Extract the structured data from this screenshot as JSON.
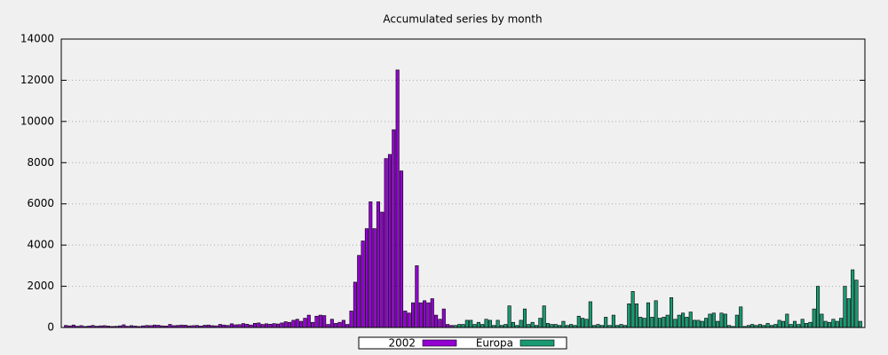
{
  "chart_data": {
    "type": "bar",
    "title": "Accumulated series by month",
    "categories": [
      null,
      null,
      null,
      null,
      null,
      null,
      null,
      null,
      null,
      null,
      null,
      null,
      null,
      null,
      null,
      null,
      null,
      null,
      null,
      null,
      null,
      null,
      null,
      null,
      null,
      null,
      null,
      null,
      null,
      null,
      null,
      null,
      null,
      null,
      null,
      null,
      null,
      null,
      null,
      null,
      null,
      null,
      null,
      null,
      null,
      null,
      null,
      null,
      null,
      null,
      null,
      null,
      null,
      null,
      null,
      null,
      null,
      null,
      null,
      null,
      null,
      null,
      null,
      null,
      null,
      null,
      null,
      null,
      null,
      null,
      null,
      null,
      null,
      null,
      null,
      null,
      null,
      null,
      null,
      null,
      null,
      null,
      null,
      null,
      null,
      null,
      null,
      null,
      null,
      null,
      null,
      null,
      null,
      null,
      null,
      null,
      null,
      null,
      null,
      null,
      null,
      null,
      null,
      null,
      null,
      null,
      null,
      null,
      null,
      null,
      null,
      null,
      null,
      null,
      null,
      null,
      null,
      null,
      null,
      null,
      null,
      null,
      null,
      null,
      null,
      null,
      null,
      null,
      null,
      null,
      null,
      null,
      null,
      null,
      null,
      null,
      null,
      null,
      null,
      null,
      null,
      null,
      null,
      null,
      null,
      null,
      null,
      null,
      null,
      null,
      null,
      null,
      null,
      null,
      null,
      null,
      null,
      null,
      null,
      null,
      null,
      null,
      null,
      null,
      null,
      null,
      null,
      null,
      null,
      null,
      null,
      null,
      null,
      null,
      null,
      null,
      null,
      null,
      null,
      null,
      null,
      null,
      null,
      null,
      null,
      null,
      null,
      null,
      null,
      null,
      null,
      null,
      null,
      null,
      null,
      null,
      null,
      null,
      null,
      null,
      null,
      null,
      null,
      null,
      null,
      null,
      null
    ],
    "series": [
      {
        "name": "2002",
        "color": "#9400d3",
        "values": [
          100,
          80,
          120,
          60,
          90,
          50,
          70,
          100,
          60,
          80,
          90,
          70,
          50,
          60,
          80,
          130,
          60,
          90,
          70,
          50,
          80,
          100,
          90,
          120,
          110,
          80,
          70,
          150,
          90,
          100,
          120,
          110,
          80,
          90,
          100,
          70,
          110,
          120,
          90,
          80,
          150,
          120,
          100,
          180,
          130,
          140,
          190,
          160,
          120,
          200,
          220,
          150,
          180,
          160,
          190,
          170,
          220,
          280,
          250,
          350,
          400,
          300,
          450,
          600,
          250,
          550,
          600,
          580,
          150,
          400,
          200,
          250,
          350,
          150,
          800,
          2200,
          3500,
          4200,
          4800,
          6100,
          4800,
          6100,
          5600,
          8200,
          8400,
          9600,
          12500,
          7600,
          800,
          700,
          1200,
          3000,
          1200,
          1300,
          1200,
          1400,
          600,
          400,
          900,
          150,
          100,
          null,
          null,
          null,
          null,
          null,
          null,
          null,
          null,
          null,
          null,
          null,
          null,
          null,
          null,
          null,
          null,
          null,
          null,
          null,
          null,
          null,
          null,
          null,
          null,
          null,
          null,
          null,
          null,
          null,
          null,
          null,
          null,
          null,
          null,
          null,
          null,
          null,
          null,
          null,
          null,
          null,
          null,
          null,
          null,
          null,
          null,
          null,
          null,
          null,
          null,
          null,
          null,
          null,
          null,
          null,
          null,
          null,
          null,
          null,
          null,
          null,
          null,
          null,
          null,
          null,
          null,
          null,
          null,
          null,
          null,
          null,
          null,
          null,
          null,
          null,
          null,
          null,
          null,
          null,
          null,
          null,
          null,
          null,
          null,
          null,
          null,
          null,
          null,
          null,
          null,
          null,
          null,
          null,
          null,
          null,
          null,
          null,
          null,
          null,
          null,
          null,
          null,
          null,
          null,
          null,
          null
        ]
      },
      {
        "name": "Europa",
        "color": "#1a9a72",
        "values": [
          null,
          null,
          null,
          null,
          null,
          null,
          null,
          null,
          null,
          null,
          null,
          null,
          null,
          null,
          null,
          null,
          null,
          null,
          null,
          null,
          null,
          null,
          null,
          null,
          null,
          null,
          null,
          null,
          null,
          null,
          null,
          null,
          null,
          null,
          null,
          null,
          null,
          null,
          null,
          null,
          null,
          null,
          null,
          null,
          null,
          null,
          null,
          null,
          null,
          null,
          null,
          null,
          null,
          null,
          null,
          null,
          null,
          null,
          null,
          null,
          null,
          null,
          null,
          null,
          null,
          null,
          null,
          null,
          null,
          null,
          null,
          null,
          null,
          null,
          null,
          null,
          null,
          null,
          null,
          null,
          null,
          null,
          null,
          null,
          null,
          null,
          null,
          null,
          null,
          null,
          null,
          null,
          null,
          null,
          null,
          null,
          null,
          null,
          null,
          null,
          null,
          100,
          150,
          150,
          350,
          350,
          150,
          250,
          150,
          400,
          350,
          100,
          350,
          100,
          150,
          1050,
          250,
          100,
          350,
          900,
          150,
          250,
          100,
          450,
          1050,
          200,
          150,
          150,
          100,
          300,
          100,
          150,
          100,
          550,
          450,
          400,
          1250,
          100,
          150,
          100,
          500,
          100,
          600,
          100,
          150,
          100,
          1150,
          1750,
          1150,
          500,
          450,
          1200,
          500,
          1300,
          450,
          500,
          600,
          1450,
          400,
          600,
          700,
          500,
          750,
          350,
          350,
          300,
          450,
          650,
          700,
          300,
          700,
          650,
          100,
          50,
          600,
          1000,
          50,
          100,
          150,
          100,
          150,
          100,
          200,
          100,
          150,
          350,
          300,
          650,
          150,
          300,
          150,
          400,
          200,
          250,
          900,
          2000,
          650,
          300,
          250,
          400,
          300,
          450,
          2000,
          1400,
          2800,
          2300,
          300
        ]
      }
    ],
    "ylim": [
      0,
      14000
    ],
    "yticks": [
      0,
      2000,
      4000,
      6000,
      8000,
      10000,
      12000,
      14000
    ],
    "grid": true
  }
}
